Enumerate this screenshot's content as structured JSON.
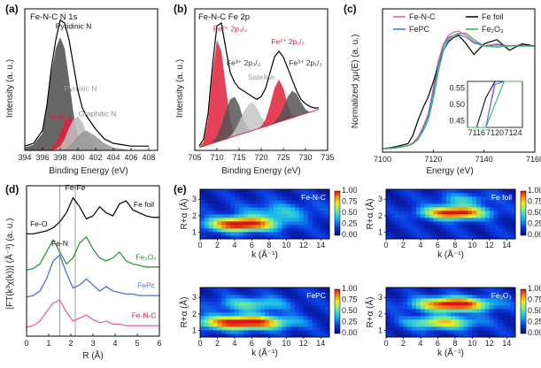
{
  "chart_data": [
    {
      "id": "a",
      "type": "area",
      "panel_label": "(a)",
      "title": "Fe-N-C N 1s",
      "xlabel": "Binding Energy (eV)",
      "ylabel": "Intensity (a. u.)",
      "xlim": [
        394,
        409
      ],
      "ylim": [
        0,
        1
      ],
      "xticks": [
        394,
        396,
        398,
        400,
        402,
        404,
        406,
        408
      ],
      "x": [
        394,
        395,
        396,
        396.5,
        397,
        397.5,
        398,
        398.5,
        399,
        399.5,
        400,
        400.5,
        401,
        402,
        403,
        404,
        405,
        406,
        407,
        408
      ],
      "series": [
        {
          "name": "Pyridinic N",
          "color": "#555555",
          "values": [
            0.02,
            0.04,
            0.12,
            0.3,
            0.55,
            0.72,
            0.8,
            0.72,
            0.5,
            0.26,
            0.1,
            0.03,
            0.01,
            0,
            0,
            0,
            0,
            0,
            0,
            0
          ]
        },
        {
          "name": "Fe-N",
          "color": "#e0203a",
          "values": [
            0,
            0,
            0,
            0,
            0.01,
            0.05,
            0.12,
            0.2,
            0.24,
            0.2,
            0.1,
            0.03,
            0,
            0,
            0,
            0,
            0,
            0,
            0,
            0
          ]
        },
        {
          "name": "Pyrrolic N",
          "color": "#bcbcbc",
          "values": [
            0,
            0,
            0,
            0,
            0,
            0.01,
            0.03,
            0.08,
            0.16,
            0.22,
            0.24,
            0.2,
            0.12,
            0.03,
            0.01,
            0,
            0,
            0,
            0,
            0
          ]
        },
        {
          "name": "Graphitic N",
          "color": "#9a9a9a",
          "values": [
            0,
            0,
            0,
            0,
            0,
            0,
            0,
            0.01,
            0.03,
            0.06,
            0.1,
            0.13,
            0.14,
            0.1,
            0.05,
            0.02,
            0.01,
            0,
            0,
            0
          ]
        },
        {
          "name": "envelope",
          "color": "#000000",
          "values": [
            0.03,
            0.05,
            0.14,
            0.32,
            0.58,
            0.78,
            0.92,
            0.9,
            0.78,
            0.6,
            0.42,
            0.3,
            0.24,
            0.15,
            0.08,
            0.05,
            0.04,
            0.03,
            0.03,
            0.03
          ]
        }
      ],
      "annotations": [
        {
          "text": "Pyridinic N",
          "x": 399.5,
          "y": 0.86,
          "color": "#111111"
        },
        {
          "text": "Pyrrolic N",
          "x": 400.3,
          "y": 0.42,
          "color": "#9a9a9a"
        },
        {
          "text": "Fe-N",
          "x": 397.6,
          "y": 0.22,
          "color": "#e0203a"
        },
        {
          "text": "Graphitic N",
          "x": 402.2,
          "y": 0.24,
          "color": "#8a8a8a"
        }
      ]
    },
    {
      "id": "b",
      "type": "area",
      "panel_label": "(b)",
      "title": "Fe-N-C Fe 2p",
      "xlabel": "Binding Energy (eV)",
      "ylabel": "Intensity (a. u.)",
      "xlim": [
        705,
        735
      ],
      "ylim": [
        0,
        1
      ],
      "xticks": [
        705,
        710,
        715,
        720,
        725,
        730,
        735
      ],
      "x": [
        706,
        707,
        708,
        709,
        710,
        711,
        712,
        713,
        714,
        715,
        716,
        717,
        718,
        719,
        720,
        721,
        722,
        723,
        724,
        725,
        726,
        727,
        728,
        729,
        730,
        731,
        732,
        733
      ],
      "baseline": [
        0.02,
        0.03,
        0.04,
        0.05,
        0.06,
        0.07,
        0.08,
        0.09,
        0.1,
        0.11,
        0.12,
        0.13,
        0.14,
        0.15,
        0.16,
        0.17,
        0.18,
        0.19,
        0.2,
        0.21,
        0.22,
        0.23,
        0.24,
        0.25,
        0.26,
        0.27,
        0.28,
        0.29
      ],
      "series": [
        {
          "name": "Fe2+ 2p3/2",
          "color": "#e0203a",
          "values": [
            0.02,
            0.06,
            0.22,
            0.55,
            0.78,
            0.7,
            0.45,
            0.22,
            0.1,
            0.11,
            0.12,
            0.13,
            0.14,
            0.15,
            0.16,
            0.17,
            0.18,
            0.19,
            0.2,
            0.21,
            0.22,
            0.23,
            0.24,
            0.25,
            0.26,
            0.27,
            0.28,
            0.29
          ]
        },
        {
          "name": "Fe3+ 2p3/2",
          "color": "#555555",
          "values": [
            0.02,
            0.03,
            0.04,
            0.06,
            0.1,
            0.18,
            0.28,
            0.36,
            0.38,
            0.32,
            0.22,
            0.15,
            0.14,
            0.15,
            0.16,
            0.17,
            0.18,
            0.19,
            0.2,
            0.21,
            0.22,
            0.23,
            0.24,
            0.25,
            0.26,
            0.27,
            0.28,
            0.29
          ]
        },
        {
          "name": "Satellite",
          "color": "#c4c4c4",
          "values": [
            0.02,
            0.03,
            0.04,
            0.05,
            0.06,
            0.07,
            0.08,
            0.1,
            0.14,
            0.2,
            0.27,
            0.32,
            0.34,
            0.3,
            0.24,
            0.19,
            0.18,
            0.19,
            0.2,
            0.21,
            0.22,
            0.23,
            0.24,
            0.25,
            0.26,
            0.27,
            0.28,
            0.29
          ]
        },
        {
          "name": "Fe2+ 2p1/2",
          "color": "#e0203a",
          "values": [
            0.02,
            0.03,
            0.04,
            0.05,
            0.06,
            0.07,
            0.08,
            0.09,
            0.1,
            0.11,
            0.12,
            0.13,
            0.14,
            0.15,
            0.17,
            0.22,
            0.32,
            0.44,
            0.5,
            0.44,
            0.32,
            0.25,
            0.24,
            0.25,
            0.26,
            0.27,
            0.28,
            0.29
          ]
        },
        {
          "name": "Fe3+ 2p1/2",
          "color": "#555555",
          "values": [
            0.02,
            0.03,
            0.04,
            0.05,
            0.06,
            0.07,
            0.08,
            0.09,
            0.1,
            0.11,
            0.12,
            0.13,
            0.14,
            0.15,
            0.16,
            0.17,
            0.18,
            0.2,
            0.24,
            0.3,
            0.38,
            0.42,
            0.4,
            0.34,
            0.29,
            0.27,
            0.28,
            0.29
          ]
        },
        {
          "name": "envelope",
          "color": "#000000",
          "values": [
            0.03,
            0.08,
            0.26,
            0.6,
            0.88,
            0.9,
            0.72,
            0.55,
            0.48,
            0.44,
            0.42,
            0.4,
            0.38,
            0.36,
            0.38,
            0.44,
            0.55,
            0.66,
            0.7,
            0.66,
            0.58,
            0.5,
            0.42,
            0.36,
            0.33,
            0.31,
            0.3,
            0.3
          ]
        }
      ],
      "annotations": [
        {
          "text": "Fe²⁺ 2p₃/₂",
          "x": 713,
          "y": 0.84,
          "color": "#e0203a"
        },
        {
          "text": "Fe³⁺ 2p₃/₂",
          "x": 716,
          "y": 0.6,
          "color": "#333333"
        },
        {
          "text": "Satellite",
          "x": 720,
          "y": 0.5,
          "color": "#9a9a9a"
        },
        {
          "text": "Fe²⁺ 2p₁/₂",
          "x": 726,
          "y": 0.75,
          "color": "#e0203a"
        },
        {
          "text": "Fe³⁺ 2p₁/₂",
          "x": 730,
          "y": 0.6,
          "color": "#333333"
        }
      ]
    },
    {
      "id": "c",
      "type": "line",
      "panel_label": "(c)",
      "title": "",
      "xlabel": "Energy (eV)",
      "ylabel": "Normalized χμ(E) (a. u.)",
      "xlim": [
        7100,
        7160
      ],
      "ylim": [
        0,
        1.35
      ],
      "xticks": [
        7100,
        7120,
        7140,
        7160
      ],
      "x": [
        7100,
        7105,
        7110,
        7112,
        7114,
        7116,
        7118,
        7120,
        7122,
        7124,
        7126,
        7128,
        7130,
        7133,
        7136,
        7140,
        7145,
        7150,
        7155,
        7160
      ],
      "series": [
        {
          "name": "Fe-N-C",
          "color": "#e8609a",
          "values": [
            0.03,
            0.04,
            0.06,
            0.09,
            0.14,
            0.24,
            0.36,
            0.6,
            0.86,
            1.02,
            1.1,
            1.13,
            1.14,
            1.1,
            1.04,
            1.0,
            1.02,
            1.0,
            1.01,
            1.0
          ]
        },
        {
          "name": "Fe foil",
          "color": "#111111",
          "values": [
            0.03,
            0.05,
            0.08,
            0.16,
            0.3,
            0.42,
            0.52,
            0.66,
            0.82,
            0.96,
            1.04,
            1.08,
            1.1,
            1.02,
            0.92,
            1.02,
            1.06,
            0.96,
            1.02,
            1.0
          ]
        },
        {
          "name": "FePC",
          "color": "#4a7be0",
          "values": [
            0.03,
            0.04,
            0.06,
            0.08,
            0.13,
            0.22,
            0.34,
            0.56,
            0.82,
            1.0,
            1.08,
            1.1,
            1.11,
            1.08,
            1.03,
            1.0,
            1.01,
            1.0,
            1.0,
            1.0
          ]
        },
        {
          "name": "Fe₂O₃",
          "color": "#3cb55a",
          "values": [
            0.03,
            0.04,
            0.06,
            0.08,
            0.12,
            0.2,
            0.3,
            0.5,
            0.76,
            0.96,
            1.06,
            1.1,
            1.12,
            1.12,
            1.06,
            1.0,
            0.99,
            1.0,
            1.0,
            1.0
          ]
        }
      ],
      "inset": {
        "xticks": [
          7116,
          7120,
          7124
        ],
        "yticks": [
          0.45,
          0.5,
          0.55
        ],
        "xlim": [
          7114,
          7126
        ],
        "ylim": [
          0.43,
          0.57
        ]
      }
    },
    {
      "id": "d",
      "type": "line",
      "panel_label": "(d)",
      "title": "",
      "xlabel": "R (Å)",
      "ylabel": "|FT(k³χ(k))| (Å⁻³) (a. u.)",
      "xlim": [
        0,
        6
      ],
      "ylim": [
        0,
        1
      ],
      "xticks": [
        0,
        1,
        2,
        3,
        4,
        5,
        6
      ],
      "x": [
        0,
        0.3,
        0.6,
        0.9,
        1.2,
        1.5,
        1.8,
        2.1,
        2.4,
        2.7,
        3.0,
        3.3,
        3.6,
        3.9,
        4.2,
        4.5,
        4.8,
        5.1,
        5.4,
        5.7,
        6.0
      ],
      "vlines": [
        1.5,
        2.2
      ],
      "series": [
        {
          "name": "Fe foil",
          "color": "#111111",
          "values": [
            0.68,
            0.68,
            0.69,
            0.7,
            0.72,
            0.76,
            0.82,
            0.92,
            0.86,
            0.78,
            0.8,
            0.86,
            0.82,
            0.8,
            0.88,
            0.9,
            0.84,
            0.82,
            0.8,
            0.79,
            0.79
          ]
        },
        {
          "name": "Fe₂O₃",
          "color": "#2e9a40",
          "values": [
            0.44,
            0.45,
            0.48,
            0.56,
            0.64,
            0.56,
            0.48,
            0.52,
            0.62,
            0.66,
            0.58,
            0.52,
            0.5,
            0.52,
            0.56,
            0.5,
            0.48,
            0.47,
            0.46,
            0.46,
            0.46
          ]
        },
        {
          "name": "FePc",
          "color": "#4a6fd8",
          "values": [
            0.26,
            0.27,
            0.3,
            0.38,
            0.5,
            0.54,
            0.42,
            0.32,
            0.34,
            0.38,
            0.34,
            0.3,
            0.33,
            0.3,
            0.29,
            0.28,
            0.28,
            0.27,
            0.27,
            0.27,
            0.27
          ]
        },
        {
          "name": "Fe-N-C",
          "color": "#e8609a",
          "values": [
            0.06,
            0.07,
            0.1,
            0.16,
            0.22,
            0.24,
            0.16,
            0.1,
            0.12,
            0.14,
            0.11,
            0.09,
            0.1,
            0.08,
            0.08,
            0.07,
            0.07,
            0.07,
            0.07,
            0.07,
            0.07
          ]
        }
      ],
      "annotations": [
        {
          "text": "Fe-Fe",
          "x": 2.2,
          "y": 0.97,
          "color": "#111111"
        },
        {
          "text": "Fe-O",
          "x": 0.55,
          "y": 0.73,
          "color": "#111111"
        },
        {
          "text": "Fe-N",
          "x": 1.5,
          "y": 0.6,
          "color": "#111111"
        },
        {
          "text": "Fe foil",
          "x": 5.3,
          "y": 0.86,
          "color": "#111111"
        },
        {
          "text": "Fe₂O₃",
          "x": 5.4,
          "y": 0.51,
          "color": "#2e9a40"
        },
        {
          "text": "FePc",
          "x": 5.4,
          "y": 0.32,
          "color": "#4a6fd8"
        },
        {
          "text": "Fe-N-C",
          "x": 5.3,
          "y": 0.12,
          "color": "#e0203a"
        }
      ]
    },
    {
      "id": "e",
      "type": "heatmap",
      "panel_label": "(e)",
      "xlabel": "k (Å⁻¹)",
      "ylabel": "R+α (Å)",
      "xlim": [
        0,
        15
      ],
      "ylim": [
        0.6,
        3.6
      ],
      "xticks": [
        0,
        2,
        4,
        6,
        8,
        10,
        12,
        14
      ],
      "yticks": [
        1,
        2,
        3
      ],
      "colorbar_ticks": [
        "1.00",
        "0.75",
        "0.50",
        "0.25",
        "0.00"
      ],
      "colormap": [
        "#08087a",
        "#0a38e0",
        "#16b8f0",
        "#6ee8a0",
        "#e8f020",
        "#f08a10",
        "#d81414"
      ],
      "maps": [
        {
          "name": "Fe-N-C",
          "label_color": "#ffffff",
          "peaks": [
            {
              "k": 4.8,
              "r": 1.5,
              "a": 1.0,
              "sk": 2.6,
              "sr": 0.28
            },
            {
              "k": 9.0,
              "r": 2.2,
              "a": 0.25,
              "sk": 3.0,
              "sr": 0.4
            }
          ]
        },
        {
          "name": "Fe foil",
          "label_color": "#ffffff",
          "peaks": [
            {
              "k": 8.0,
              "r": 2.2,
              "a": 1.0,
              "sk": 2.4,
              "sr": 0.26
            },
            {
              "k": 9.0,
              "r": 3.0,
              "a": 0.25,
              "sk": 2.0,
              "sr": 0.25
            }
          ]
        },
        {
          "name": "FePC",
          "label_color": "#ffffff",
          "peaks": [
            {
              "k": 5.0,
              "r": 1.5,
              "a": 1.0,
              "sk": 3.4,
              "sr": 0.28
            },
            {
              "k": 6.0,
              "r": 2.6,
              "a": 0.35,
              "sk": 2.8,
              "sr": 0.3
            }
          ]
        },
        {
          "name": "Fe₂O₃",
          "label_color": "#ffffff",
          "peaks": [
            {
              "k": 7.8,
              "r": 2.6,
              "a": 1.0,
              "sk": 2.8,
              "sr": 0.28
            },
            {
              "k": 6.5,
              "r": 1.5,
              "a": 0.6,
              "sk": 2.6,
              "sr": 0.26
            }
          ]
        }
      ]
    }
  ]
}
